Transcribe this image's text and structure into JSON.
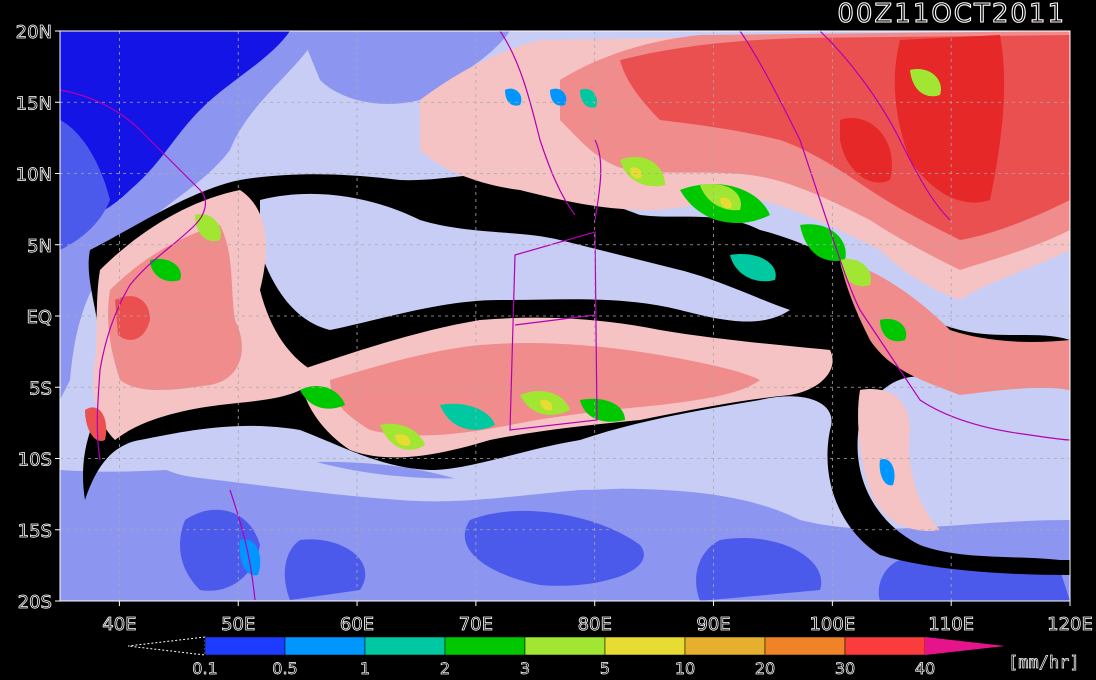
{
  "title": "00Z11OCT2011",
  "map": {
    "lat_labels": [
      "20N",
      "15N",
      "10N",
      "5N",
      "EQ",
      "5S",
      "10S",
      "15S",
      "20S"
    ],
    "lat_values": [
      20,
      15,
      10,
      5,
      0,
      -5,
      -10,
      -15,
      -20
    ],
    "lon_labels": [
      "40E",
      "50E",
      "60E",
      "70E",
      "80E",
      "90E",
      "100E",
      "110E",
      "120E"
    ],
    "lon_values": [
      40,
      50,
      60,
      70,
      80,
      90,
      100,
      110,
      120
    ],
    "lon_range": [
      35,
      120
    ],
    "lat_range": [
      -20,
      20
    ]
  },
  "colorbar": {
    "tick_labels": [
      "0.1",
      "0.5",
      "1",
      "2",
      "3",
      "5",
      "10",
      "20",
      "30",
      "40"
    ],
    "colors": [
      "#1e3cff",
      "#0096ff",
      "#00c8a0",
      "#00c800",
      "#a0e632",
      "#e6dc32",
      "#e6af2d",
      "#f08228",
      "#fa3c3c",
      "#ff1493"
    ],
    "unit_label": "[mm/hr]",
    "under_color": "#000000",
    "over_color": "#e6148c"
  },
  "palette": {
    "deep_blue": "#1414e6",
    "mid_blue": "#4b5aeb",
    "light_blue": "#8c96f0",
    "pale_blue": "#c8cdf5",
    "pale_red": "#f5c3c3",
    "light_red": "#f08c8c",
    "red": "#eb5050",
    "dark_red": "#e62828",
    "black": "#000000",
    "coast": "#b400b4"
  }
}
